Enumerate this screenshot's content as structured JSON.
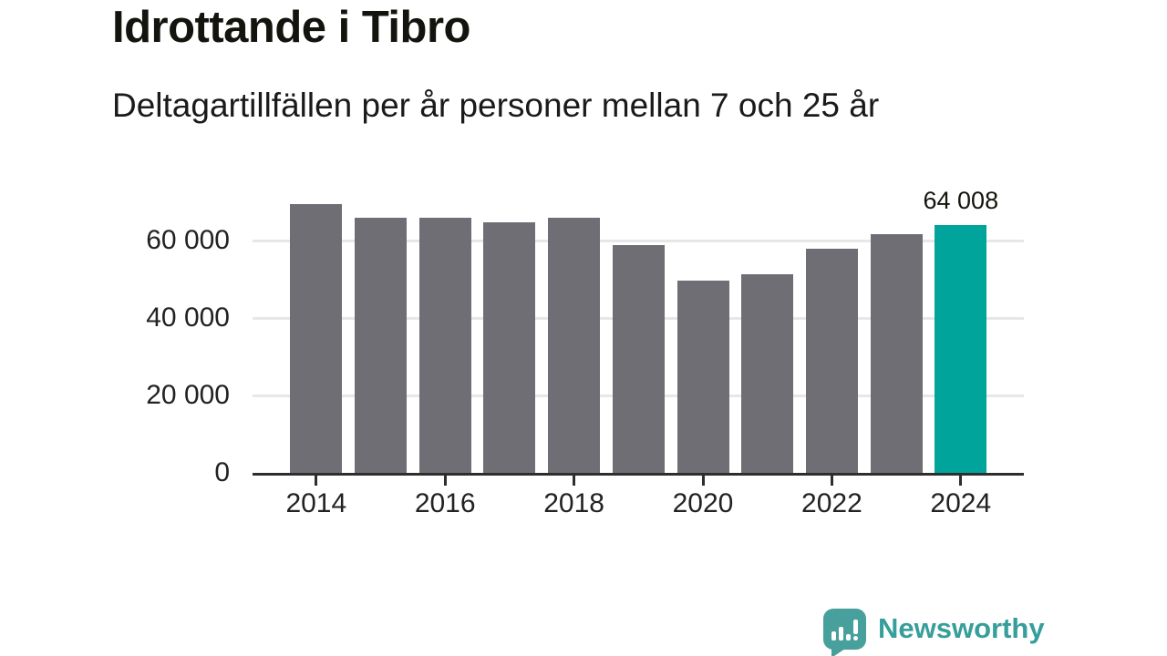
{
  "title": "Idrottande i Tibro",
  "subtitle": "Deltagartillfällen per år personer mellan 7 och 25 år",
  "chart_data": {
    "type": "bar",
    "categories": [
      2014,
      2015,
      2016,
      2017,
      2018,
      2019,
      2020,
      2021,
      2022,
      2023,
      2024
    ],
    "values": [
      69400,
      66000,
      66000,
      64800,
      65800,
      58900,
      49600,
      51400,
      57900,
      61600,
      64008
    ],
    "title": "Idrottande i Tibro",
    "subtitle": "Deltagartillfällen per år personer mellan 7 och 25 år",
    "xlabel": "",
    "ylabel": "",
    "ylim": [
      0,
      72000
    ],
    "yticks": [
      0,
      20000,
      40000,
      60000
    ],
    "ytick_labels": [
      "0",
      "20 000",
      "40 000",
      "60 000"
    ],
    "xticks": [
      2014,
      2016,
      2018,
      2020,
      2022,
      2024
    ],
    "grid": true,
    "legend_position": "none",
    "highlight_index": 10,
    "annotation": {
      "index": 10,
      "label": "64 008"
    },
    "bar_color": "#6e6e74",
    "highlight_color": "#00a49b",
    "axis_color": "#2e2e2e",
    "gridline_color": "#e7e7e7"
  },
  "footer": {
    "brand": "Newsworthy",
    "brand_color": "#369e9b",
    "logo_color": "#48a09d",
    "logo_icon": "bar-chart-exclamation-speech-bubble"
  }
}
